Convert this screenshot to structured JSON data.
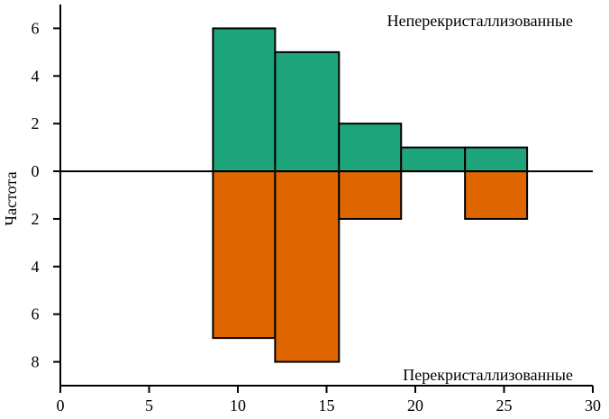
{
  "chart_data": {
    "type": "bar",
    "title": "",
    "xlabel": "",
    "ylabel": "Частота",
    "xlim": [
      0,
      30
    ],
    "ylim": [
      -9,
      7
    ],
    "grid": false,
    "x_ticks": [
      0,
      5,
      10,
      15,
      20,
      25,
      30
    ],
    "y_ticks": [
      {
        "value": 6,
        "label": "6"
      },
      {
        "value": 4,
        "label": "4"
      },
      {
        "value": 2,
        "label": "2"
      },
      {
        "value": 0,
        "label": "0"
      },
      {
        "value": -2,
        "label": "2"
      },
      {
        "value": -4,
        "label": "4"
      },
      {
        "value": -6,
        "label": "6"
      },
      {
        "value": -8,
        "label": "8"
      }
    ],
    "bins": [
      {
        "x0": 8.6,
        "x1": 12.1
      },
      {
        "x0": 12.1,
        "x1": 15.7
      },
      {
        "x0": 15.7,
        "x1": 19.2
      },
      {
        "x0": 19.2,
        "x1": 22.8
      },
      {
        "x0": 22.8,
        "x1": 26.3
      }
    ],
    "series": [
      {
        "name": "Неперекристаллизованные",
        "direction": "up",
        "color": "#1ea57b",
        "values": [
          6,
          5,
          2,
          1,
          1
        ]
      },
      {
        "name": "Перекристаллизованные",
        "direction": "down",
        "color": "#e06600",
        "values": [
          7,
          8,
          2,
          0,
          2
        ]
      }
    ]
  }
}
